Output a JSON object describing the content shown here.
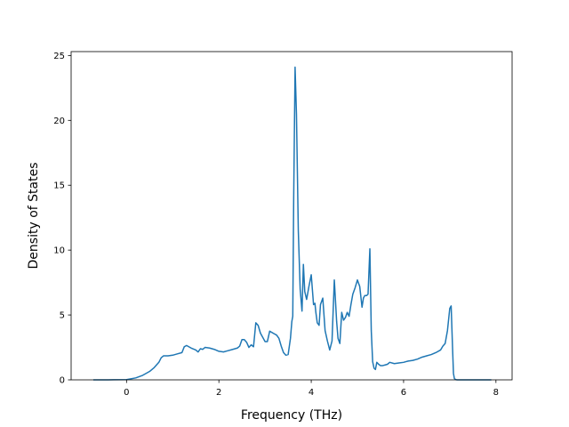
{
  "chart_data": {
    "type": "line",
    "title": "",
    "xlabel": "Frequency (THz)",
    "ylabel": "Density of States",
    "xlim": [
      -1.2,
      8.35
    ],
    "ylim": [
      0,
      25.3
    ],
    "xticks": [
      0,
      2,
      4,
      6,
      8
    ],
    "yticks": [
      0,
      5,
      10,
      15,
      20,
      25
    ],
    "grid": false,
    "legend": "none",
    "series": [
      {
        "color": "#1f77b4",
        "x": [
          -0.72,
          -0.4,
          0.0,
          0.2,
          0.35,
          0.5,
          0.6,
          0.7,
          0.75,
          0.8,
          0.85,
          0.9,
          1.0,
          1.1,
          1.2,
          1.25,
          1.3,
          1.4,
          1.5,
          1.55,
          1.6,
          1.65,
          1.7,
          1.8,
          1.9,
          2.0,
          2.1,
          2.2,
          2.3,
          2.4,
          2.45,
          2.5,
          2.55,
          2.6,
          2.65,
          2.7,
          2.75,
          2.8,
          2.85,
          2.9,
          3.0,
          3.05,
          3.1,
          3.2,
          3.25,
          3.3,
          3.35,
          3.4,
          3.45,
          3.5,
          3.55,
          3.58,
          3.6,
          3.62,
          3.65,
          3.68,
          3.72,
          3.76,
          3.8,
          3.83,
          3.86,
          3.9,
          3.95,
          4.0,
          4.05,
          4.08,
          4.1,
          4.13,
          4.17,
          4.2,
          4.25,
          4.3,
          4.35,
          4.4,
          4.45,
          4.5,
          4.55,
          4.58,
          4.62,
          4.66,
          4.7,
          4.74,
          4.78,
          4.82,
          4.86,
          4.9,
          4.95,
          5.0,
          5.05,
          5.1,
          5.13,
          5.16,
          5.2,
          5.23,
          5.27,
          5.3,
          5.33,
          5.36,
          5.39,
          5.42,
          5.46,
          5.5,
          5.55,
          5.6,
          5.65,
          5.7,
          5.8,
          5.9,
          6.0,
          6.05,
          6.1,
          6.2,
          6.3,
          6.4,
          6.5,
          6.6,
          6.7,
          6.8,
          6.85,
          6.9,
          6.95,
          7.0,
          7.03,
          7.06,
          7.08,
          7.1,
          7.13,
          7.16,
          7.2,
          7.25,
          7.3,
          7.5,
          7.9
        ],
        "y": [
          0.0,
          0.0,
          0.02,
          0.15,
          0.35,
          0.65,
          0.95,
          1.35,
          1.7,
          1.85,
          1.85,
          1.85,
          1.9,
          2.0,
          2.1,
          2.55,
          2.65,
          2.45,
          2.3,
          2.15,
          2.4,
          2.35,
          2.5,
          2.45,
          2.35,
          2.2,
          2.15,
          2.25,
          2.35,
          2.45,
          2.6,
          3.1,
          3.1,
          2.9,
          2.5,
          2.7,
          2.55,
          4.4,
          4.2,
          3.6,
          2.95,
          2.95,
          3.75,
          3.55,
          3.45,
          3.2,
          2.6,
          2.1,
          1.9,
          1.95,
          3.2,
          4.5,
          4.9,
          14.0,
          24.1,
          20.5,
          11.5,
          7.0,
          5.3,
          8.9,
          6.8,
          6.2,
          7.2,
          8.1,
          5.8,
          5.9,
          5.2,
          4.4,
          4.2,
          5.8,
          6.3,
          3.8,
          3.0,
          2.3,
          3.0,
          7.7,
          4.5,
          3.2,
          2.8,
          5.2,
          4.6,
          4.8,
          5.2,
          4.9,
          5.8,
          6.6,
          7.1,
          7.7,
          7.2,
          5.6,
          6.3,
          6.5,
          6.5,
          6.6,
          10.1,
          3.8,
          1.4,
          0.9,
          0.8,
          1.35,
          1.2,
          1.1,
          1.1,
          1.15,
          1.2,
          1.35,
          1.25,
          1.3,
          1.35,
          1.4,
          1.45,
          1.5,
          1.6,
          1.75,
          1.85,
          1.95,
          2.1,
          2.3,
          2.6,
          2.8,
          3.8,
          5.5,
          5.7,
          2.5,
          0.5,
          0.1,
          0.02,
          0.0,
          0.0,
          0.0,
          0.0,
          0.0,
          0.0
        ]
      }
    ]
  }
}
